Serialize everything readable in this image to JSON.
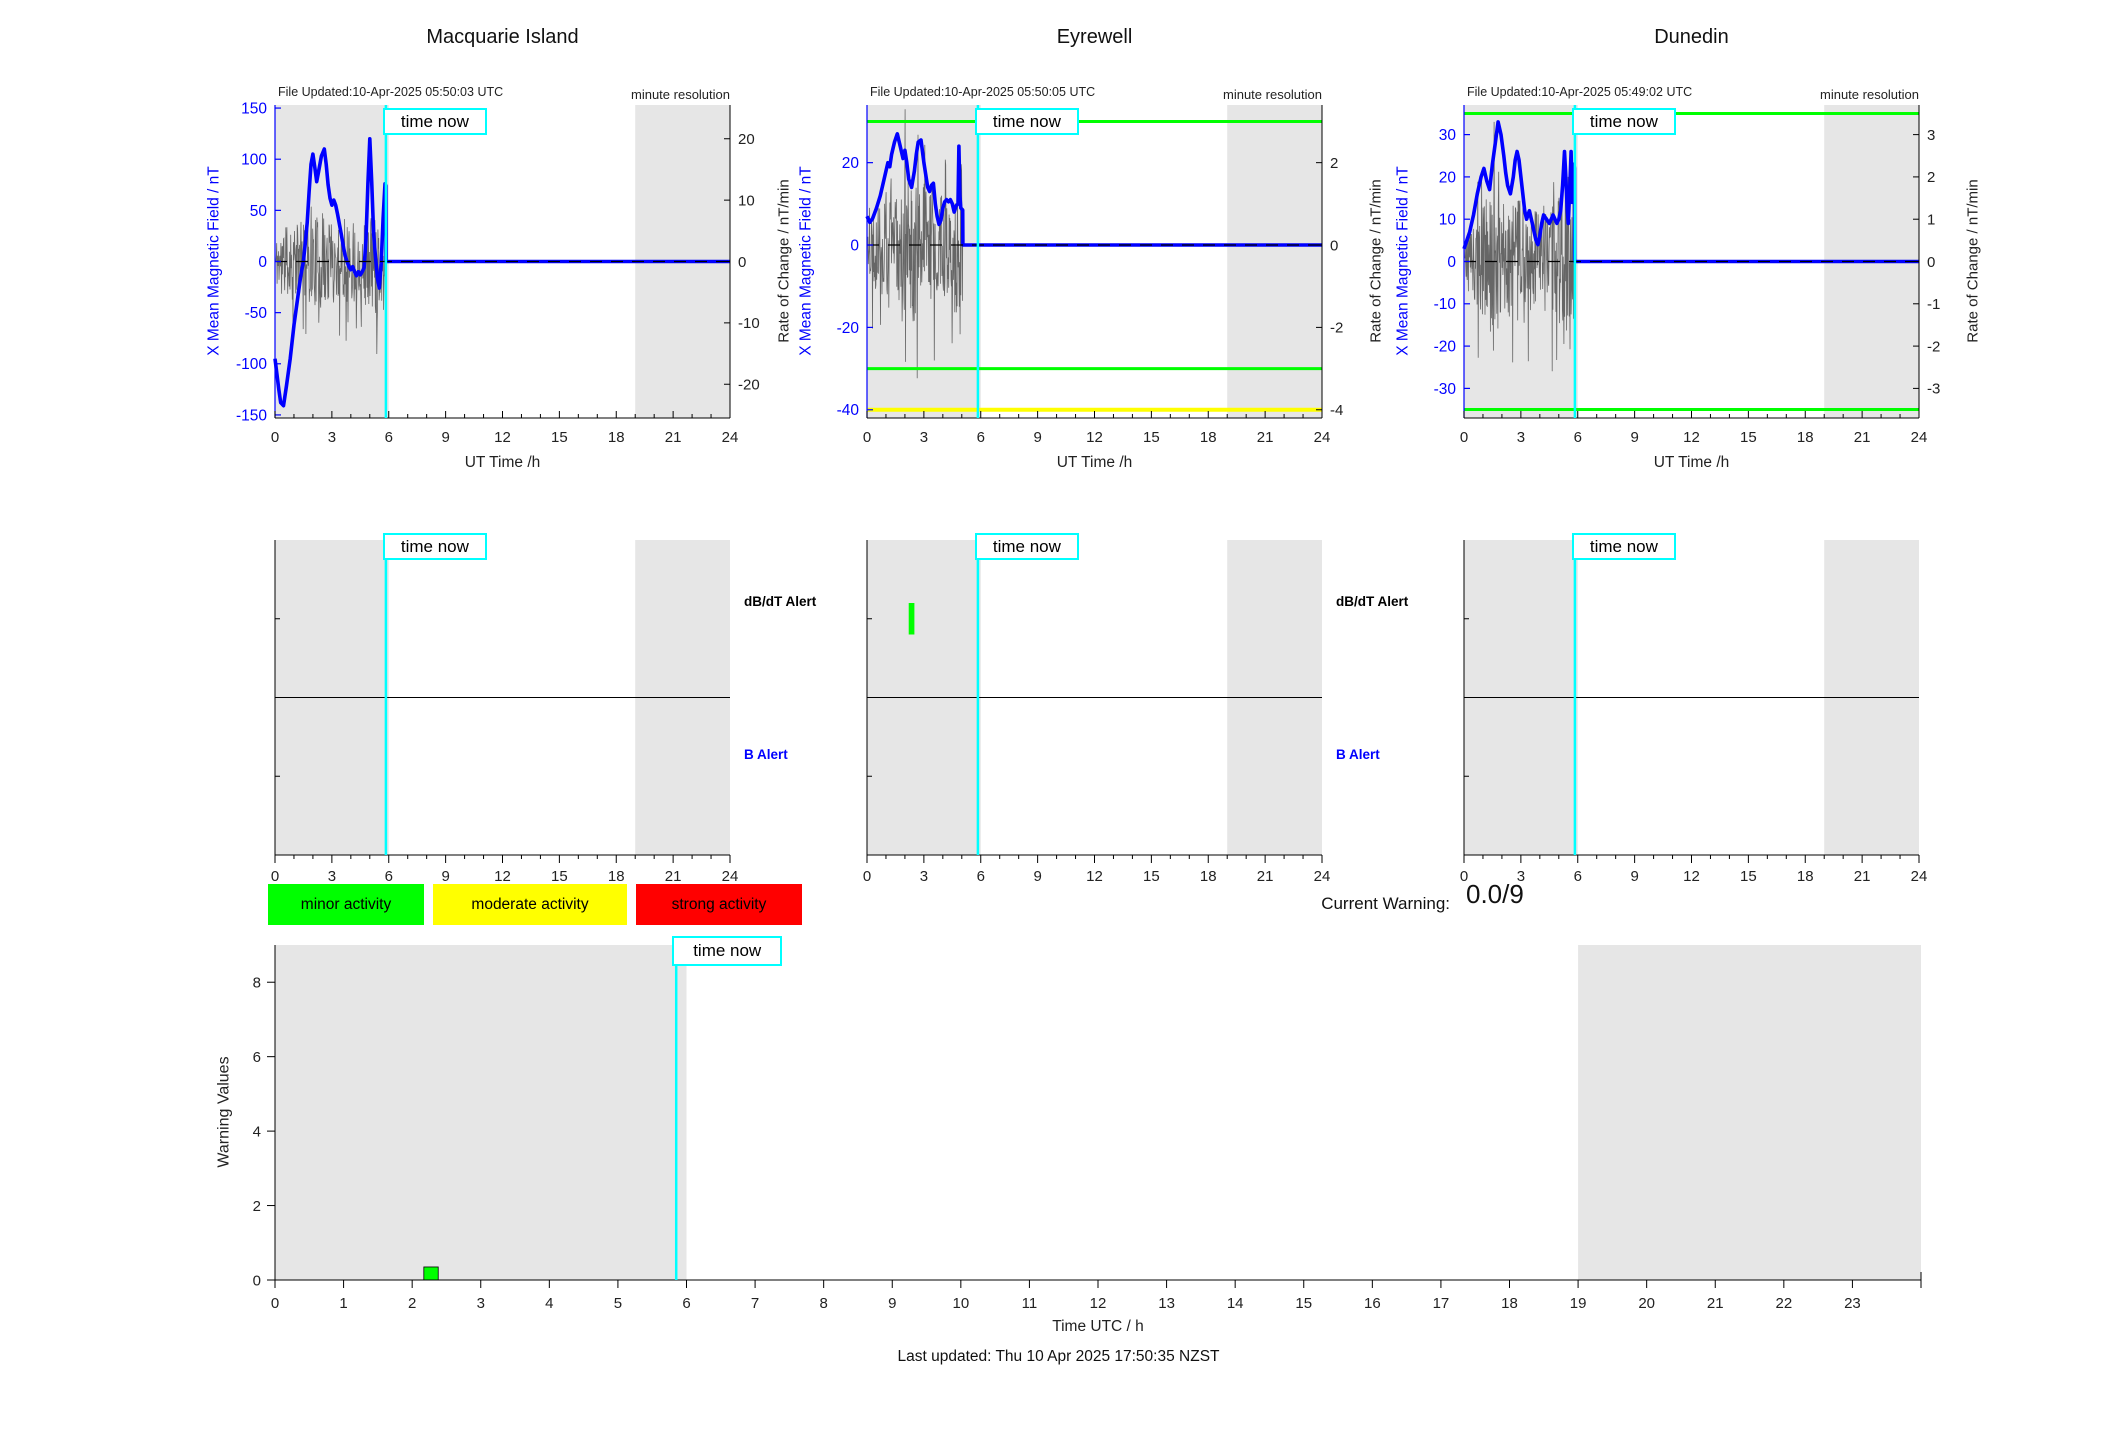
{
  "footer": "Last updated: Thu 10 Apr 2025 17:50:35 NZST",
  "time_now": {
    "label": "time now",
    "hour": 5.85
  },
  "shaded_hours": [
    [
      0,
      6
    ],
    [
      19,
      24
    ]
  ],
  "legend": {
    "items": [
      {
        "label": "minor activity",
        "color": "#00ff00"
      },
      {
        "label": "moderate activity",
        "color": "#ffff00"
      },
      {
        "label": "strong activity",
        "color": "#ff0000"
      }
    ]
  },
  "current_warning": {
    "label": "Current Warning:",
    "value": "0.0/9"
  },
  "colors": {
    "line_blue": "#0000ff",
    "noise_gray": "#666666",
    "shade": "#e6e6e6",
    "cyan": "#00ffff",
    "green": "#00ff00",
    "yellow": "#ffff00",
    "red": "#ff0000",
    "axis": "#000000",
    "text_dark": "#222222"
  },
  "chart_data": {
    "type": "line",
    "alert_rows": [
      {
        "label": "dB/dT Alert",
        "color": "#000000"
      },
      {
        "label": "B Alert",
        "color": "#0000ff"
      }
    ],
    "stations": [
      {
        "title": "Macquarie Island",
        "file_updated": "File Updated:10-Apr-2025 05:50:03 UTC",
        "resolution_note": "minute resolution",
        "left_axis": {
          "label": "X Mean Magnetic Field / nT",
          "range": [
            -153,
            153
          ],
          "ticks": [
            150,
            100,
            50,
            0,
            -50,
            -100,
            -150
          ]
        },
        "right_axis": {
          "label": "Rate of Change / nT/min",
          "range": [
            -25.5,
            25.5
          ],
          "ticks": [
            20,
            10,
            0,
            -10,
            -20
          ]
        },
        "x_axis": {
          "label": "UT Time /h",
          "range": [
            0,
            24
          ],
          "ticks": [
            0,
            3,
            6,
            9,
            12,
            15,
            18,
            21,
            24
          ]
        },
        "threshold_lines": [],
        "field_series": {
          "x": [
            0,
            0.1,
            0.2,
            0.3,
            0.45,
            0.6,
            0.8,
            1,
            1.2,
            1.35,
            1.5,
            1.6,
            1.7,
            1.8,
            1.9,
            2,
            2.1,
            2.2,
            2.3,
            2.45,
            2.6,
            2.7,
            2.8,
            2.9,
            3,
            3.1,
            3.2,
            3.3,
            3.4,
            3.5,
            3.6,
            3.7,
            3.8,
            3.9,
            4,
            4.1,
            4.2,
            4.3,
            4.4,
            4.5,
            4.6,
            4.7,
            4.8,
            4.9,
            5,
            5.1,
            5.2,
            5.3,
            5.4,
            5.5,
            5.6,
            5.7,
            5.8,
            5.85,
            5.86,
            24
          ],
          "y": [
            -95,
            -110,
            -125,
            -138,
            -141,
            -122,
            -95,
            -62,
            -35,
            -15,
            0,
            18,
            38,
            68,
            95,
            105,
            92,
            78,
            88,
            103,
            110,
            95,
            75,
            62,
            55,
            60,
            55,
            46,
            36,
            26,
            15,
            6,
            0,
            -5,
            -8,
            -5,
            -10,
            -14,
            -10,
            -13,
            -10,
            -6,
            22,
            76,
            120,
            78,
            28,
            4,
            -16,
            -26,
            -2,
            42,
            76,
            74,
            0,
            0
          ]
        },
        "rate_noise": {
          "seed": 11,
          "step_h": 0.02,
          "start_h": 0.05,
          "end_h": 5.85,
          "amp_envelope": [
            [
              0,
              4
            ],
            [
              0.5,
              5.5
            ],
            [
              1,
              6.5
            ],
            [
              1.5,
              6
            ],
            [
              2,
              7
            ],
            [
              2.5,
              8
            ],
            [
              3,
              7
            ],
            [
              3.5,
              6.5
            ],
            [
              4,
              7
            ],
            [
              4.5,
              6
            ],
            [
              5,
              8
            ],
            [
              5.5,
              7
            ],
            [
              5.85,
              6
            ]
          ]
        },
        "alert_panel": {
          "events": []
        }
      },
      {
        "title": "Eyrewell",
        "file_updated": "File Updated:10-Apr-2025 05:50:05 UTC",
        "resolution_note": "minute resolution",
        "left_axis": {
          "label": "X Mean Magnetic Field / nT",
          "range": [
            -42,
            34
          ],
          "ticks": [
            20,
            0,
            -20,
            -40
          ]
        },
        "right_axis": {
          "label": "Rate of Change / nT/min",
          "range": [
            -4.2,
            3.4
          ],
          "ticks": [
            2,
            0,
            -2,
            -4
          ]
        },
        "x_axis": {
          "label": "UT Time /h",
          "range": [
            0,
            24
          ],
          "ticks": [
            0,
            3,
            6,
            9,
            12,
            15,
            18,
            21,
            24
          ]
        },
        "threshold_lines": [
          {
            "value": 30,
            "color": "#00ff00",
            "width": 3
          },
          {
            "value": -30,
            "color": "#00ff00",
            "width": 3
          },
          {
            "value": -40,
            "color": "#ffff00",
            "width": 4
          }
        ],
        "field_series": {
          "x": [
            0,
            0.15,
            0.3,
            0.5,
            0.7,
            0.9,
            1,
            1.1,
            1.2,
            1.3,
            1.45,
            1.6,
            1.75,
            1.9,
            2,
            2.1,
            2.2,
            2.35,
            2.5,
            2.6,
            2.7,
            2.85,
            3,
            3.1,
            3.2,
            3.3,
            3.4,
            3.5,
            3.6,
            3.7,
            3.8,
            3.9,
            4,
            4.1,
            4.2,
            4.3,
            4.4,
            4.5,
            4.6,
            4.7,
            4.8,
            4.85,
            4.9,
            4.95,
            5.05,
            5.06,
            24
          ],
          "y": [
            7,
            5.5,
            6.5,
            9,
            12,
            16,
            18,
            20,
            19,
            22,
            25,
            27,
            24,
            21,
            23,
            20,
            16,
            14,
            18,
            22,
            25,
            25.5,
            20,
            17,
            14,
            13,
            14.5,
            15,
            10,
            7,
            5,
            6,
            9,
            10.5,
            11,
            10.5,
            11,
            10,
            8,
            9.5,
            10,
            24,
            12,
            9,
            8.5,
            0,
            0
          ]
        },
        "rate_noise": {
          "seed": 22,
          "step_h": 0.02,
          "start_h": 0.05,
          "end_h": 5.05,
          "amp_envelope": [
            [
              0,
              0.8
            ],
            [
              0.5,
              1.1
            ],
            [
              1,
              1.3
            ],
            [
              1.5,
              1.3
            ],
            [
              2,
              1.6
            ],
            [
              2.5,
              1.9
            ],
            [
              3,
              1.6
            ],
            [
              3.5,
              1.4
            ],
            [
              4,
              1.2
            ],
            [
              4.5,
              1.5
            ],
            [
              4.9,
              2.3
            ],
            [
              5.05,
              1.6
            ]
          ]
        },
        "alert_panel": {
          "events": [
            {
              "start_hour": 2.2,
              "end_hour": 2.5,
              "row": 0,
              "color": "#00ff00"
            }
          ]
        }
      },
      {
        "title": "Dunedin",
        "file_updated": "File Updated:10-Apr-2025 05:49:02 UTC",
        "resolution_note": "minute resolution",
        "left_axis": {
          "label": "X Mean Magnetic Field / nT",
          "range": [
            -37,
            37
          ],
          "ticks": [
            30,
            20,
            10,
            0,
            -10,
            -20,
            -30
          ]
        },
        "right_axis": {
          "label": "Rate of Change / nT/min",
          "range": [
            -3.7,
            3.7
          ],
          "ticks": [
            3,
            2,
            1,
            0,
            -1,
            -2,
            -3
          ]
        },
        "x_axis": {
          "label": "UT Time /h",
          "range": [
            0,
            24
          ],
          "ticks": [
            0,
            3,
            6,
            9,
            12,
            15,
            18,
            21,
            24
          ]
        },
        "threshold_lines": [
          {
            "value": 35,
            "color": "#00ff00",
            "width": 3
          },
          {
            "value": -35,
            "color": "#00ff00",
            "width": 3
          }
        ],
        "field_series": {
          "x": [
            0,
            0.15,
            0.3,
            0.5,
            0.7,
            0.9,
            1.05,
            1.2,
            1.35,
            1.5,
            1.65,
            1.8,
            1.95,
            2.1,
            2.2,
            2.3,
            2.45,
            2.6,
            2.7,
            2.8,
            2.9,
            3,
            3.1,
            3.2,
            3.3,
            3.45,
            3.6,
            3.7,
            3.8,
            3.9,
            4,
            4.1,
            4.2,
            4.35,
            4.5,
            4.6,
            4.7,
            4.8,
            4.9,
            5,
            5.1,
            5.2,
            5.3,
            5.35,
            5.45,
            5.5,
            5.6,
            5.65,
            5.7,
            5.75,
            5.8,
            5.83,
            5.84,
            24
          ],
          "y": [
            3,
            5,
            7,
            11,
            16,
            20,
            22,
            19,
            17,
            23,
            28,
            33,
            30,
            25,
            21,
            18,
            16,
            20,
            24,
            26,
            24,
            20,
            16,
            12,
            10,
            12,
            9,
            7,
            5,
            4,
            6,
            9,
            11,
            10,
            9,
            10,
            11,
            10,
            9,
            10,
            12,
            18,
            26,
            22,
            12,
            9,
            20,
            26,
            14,
            19,
            23,
            22,
            0,
            0
          ]
        },
        "rate_noise": {
          "seed": 33,
          "step_h": 0.02,
          "start_h": 0.05,
          "end_h": 5.82,
          "amp_envelope": [
            [
              0,
              0.7
            ],
            [
              0.5,
              1
            ],
            [
              1,
              1.4
            ],
            [
              1.5,
              1.6
            ],
            [
              2,
              1.7
            ],
            [
              2.5,
              1.5
            ],
            [
              3,
              1.6
            ],
            [
              3.5,
              1.3
            ],
            [
              4,
              1.1
            ],
            [
              4.5,
              1.2
            ],
            [
              5,
              1.6
            ],
            [
              5.5,
              2.3
            ],
            [
              5.82,
              2
            ]
          ]
        },
        "alert_panel": {
          "events": []
        }
      }
    ],
    "warning_chart": {
      "type": "bar",
      "ylabel": "Warning Values",
      "yticks": [
        0,
        2,
        4,
        6,
        8
      ],
      "yrange": [
        0,
        9
      ],
      "xlabel": "Time UTC / h",
      "xticks": [
        0,
        1,
        2,
        3,
        4,
        5,
        6,
        7,
        8,
        9,
        10,
        11,
        12,
        13,
        14,
        15,
        16,
        17,
        18,
        19,
        20,
        21,
        22,
        23
      ],
      "xrange": [
        0,
        24
      ],
      "bars": [
        {
          "start_hour": 2.17,
          "end_hour": 2.38,
          "value": 0.35,
          "color": "#00ff00"
        }
      ]
    }
  }
}
